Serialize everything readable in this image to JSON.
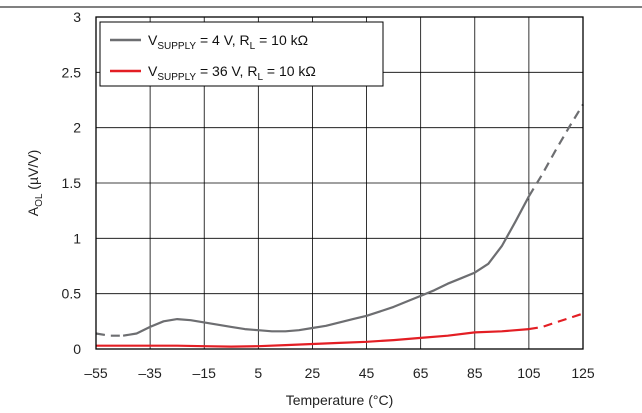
{
  "chart_data": {
    "type": "line",
    "xlabel": "Temperature (°C)",
    "ylabel_main": "A",
    "ylabel_sub": "OL",
    "ylabel_unit": " (µV/V)",
    "xlim": [
      -55,
      125
    ],
    "ylim": [
      0,
      3
    ],
    "x_ticks": [
      -55,
      -35,
      -15,
      5,
      25,
      45,
      65,
      85,
      105,
      125
    ],
    "x_tick_labels": [
      "–55",
      "–35",
      "–15",
      "5",
      "25",
      "45",
      "65",
      "85",
      "105",
      "125"
    ],
    "y_ticks": [
      0,
      0.5,
      1,
      1.5,
      2,
      2.5,
      3
    ],
    "y_tick_labels": [
      "0",
      "0.5",
      "1",
      "1.5",
      "2",
      "2.5",
      "3"
    ],
    "grid": true,
    "legend_position": "top-left",
    "series": [
      {
        "name_parts": [
          "V",
          "SUPPLY",
          " = 4 V, R",
          "L",
          " = 10 kΩ"
        ],
        "color": "#6d6e71",
        "solid_range": [
          -45,
          105
        ],
        "points": [
          [
            -55,
            0.14
          ],
          [
            -50,
            0.12
          ],
          [
            -45,
            0.12
          ],
          [
            -40,
            0.14
          ],
          [
            -35,
            0.2
          ],
          [
            -30,
            0.25
          ],
          [
            -25,
            0.27
          ],
          [
            -20,
            0.26
          ],
          [
            -15,
            0.24
          ],
          [
            -10,
            0.22
          ],
          [
            -5,
            0.2
          ],
          [
            0,
            0.18
          ],
          [
            5,
            0.17
          ],
          [
            10,
            0.16
          ],
          [
            15,
            0.16
          ],
          [
            20,
            0.17
          ],
          [
            25,
            0.19
          ],
          [
            30,
            0.21
          ],
          [
            35,
            0.24
          ],
          [
            40,
            0.27
          ],
          [
            45,
            0.3
          ],
          [
            50,
            0.34
          ],
          [
            55,
            0.38
          ],
          [
            60,
            0.43
          ],
          [
            65,
            0.48
          ],
          [
            70,
            0.53
          ],
          [
            75,
            0.59
          ],
          [
            80,
            0.64
          ],
          [
            85,
            0.69
          ],
          [
            90,
            0.77
          ],
          [
            95,
            0.93
          ],
          [
            100,
            1.15
          ],
          [
            105,
            1.38
          ],
          [
            110,
            1.58
          ],
          [
            115,
            1.8
          ],
          [
            120,
            2.01
          ],
          [
            125,
            2.21
          ]
        ]
      },
      {
        "name_parts": [
          "V",
          "SUPPLY",
          " = 36 V, R",
          "L",
          " = 10 kΩ"
        ],
        "color": "#e31e24",
        "solid_range": [
          -55,
          105
        ],
        "points": [
          [
            -55,
            0.03
          ],
          [
            -45,
            0.03
          ],
          [
            -35,
            0.03
          ],
          [
            -25,
            0.03
          ],
          [
            -15,
            0.025
          ],
          [
            -5,
            0.022
          ],
          [
            5,
            0.025
          ],
          [
            15,
            0.035
          ],
          [
            25,
            0.045
          ],
          [
            35,
            0.055
          ],
          [
            45,
            0.065
          ],
          [
            55,
            0.08
          ],
          [
            65,
            0.1
          ],
          [
            75,
            0.12
          ],
          [
            85,
            0.15
          ],
          [
            95,
            0.16
          ],
          [
            105,
            0.18
          ],
          [
            110,
            0.2
          ],
          [
            115,
            0.24
          ],
          [
            120,
            0.28
          ],
          [
            125,
            0.32
          ]
        ]
      }
    ]
  }
}
